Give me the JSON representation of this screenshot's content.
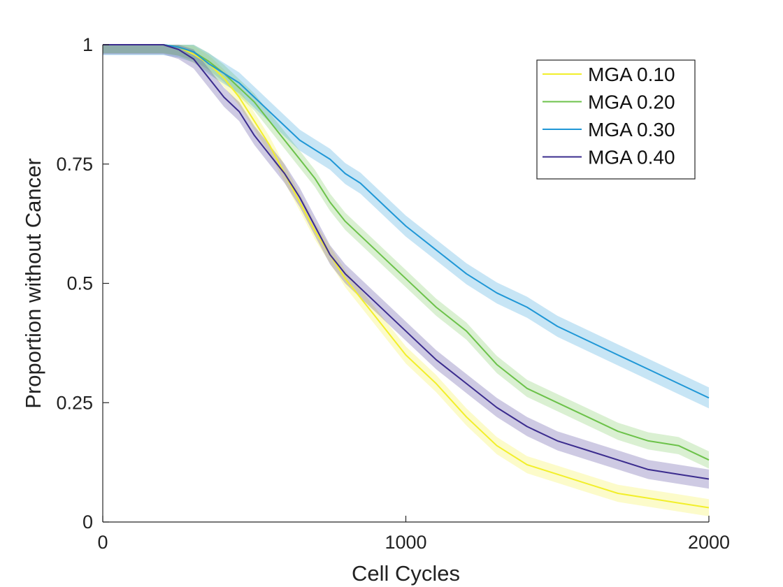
{
  "chart_data": {
    "type": "line",
    "title": "",
    "xlabel": "Cell Cycles",
    "ylabel": "Proportion without Cancer",
    "xlim": [
      0,
      2000
    ],
    "ylim": [
      0,
      1
    ],
    "xticks": [
      0,
      1000,
      2000
    ],
    "xtick_labels": [
      "0",
      "1000",
      "2000"
    ],
    "yticks": [
      0,
      0.25,
      0.5,
      0.75,
      1
    ],
    "ytick_labels": [
      "0",
      "0.25",
      "0.5",
      "0.75",
      "1"
    ],
    "grid": false,
    "legend_position": "top-right",
    "x": [
      0,
      100,
      200,
      250,
      300,
      350,
      400,
      450,
      500,
      550,
      600,
      650,
      700,
      750,
      800,
      850,
      900,
      950,
      1000,
      1100,
      1200,
      1300,
      1400,
      1500,
      1600,
      1700,
      1800,
      1900,
      2000
    ],
    "series": [
      {
        "name": "MGA 0.10",
        "color": "#f2ef2a",
        "band": 0.018,
        "values": [
          1,
          1,
          1,
          0.995,
          0.98,
          0.96,
          0.93,
          0.89,
          0.84,
          0.79,
          0.73,
          0.67,
          0.61,
          0.56,
          0.51,
          0.47,
          0.43,
          0.39,
          0.35,
          0.29,
          0.22,
          0.16,
          0.12,
          0.1,
          0.08,
          0.06,
          0.05,
          0.04,
          0.03
        ]
      },
      {
        "name": "MGA 0.20",
        "color": "#6cc24a",
        "band": 0.018,
        "values": [
          1,
          1,
          1,
          0.995,
          0.985,
          0.965,
          0.94,
          0.91,
          0.88,
          0.84,
          0.8,
          0.76,
          0.72,
          0.67,
          0.63,
          0.6,
          0.57,
          0.54,
          0.51,
          0.45,
          0.4,
          0.33,
          0.28,
          0.25,
          0.22,
          0.19,
          0.17,
          0.16,
          0.13
        ]
      },
      {
        "name": "MGA 0.30",
        "color": "#1f97d6",
        "band": 0.022,
        "values": [
          1,
          1,
          1,
          0.995,
          0.985,
          0.96,
          0.94,
          0.92,
          0.89,
          0.86,
          0.83,
          0.8,
          0.78,
          0.76,
          0.73,
          0.71,
          0.68,
          0.65,
          0.62,
          0.57,
          0.52,
          0.48,
          0.45,
          0.41,
          0.38,
          0.35,
          0.32,
          0.29,
          0.26
        ]
      },
      {
        "name": "MGA 0.40",
        "color": "#3b2c8e",
        "band": 0.02,
        "values": [
          1,
          1,
          1,
          0.99,
          0.97,
          0.93,
          0.89,
          0.86,
          0.81,
          0.77,
          0.73,
          0.68,
          0.62,
          0.56,
          0.52,
          0.49,
          0.46,
          0.43,
          0.4,
          0.34,
          0.29,
          0.24,
          0.2,
          0.17,
          0.15,
          0.13,
          0.11,
          0.1,
          0.09
        ]
      }
    ]
  }
}
